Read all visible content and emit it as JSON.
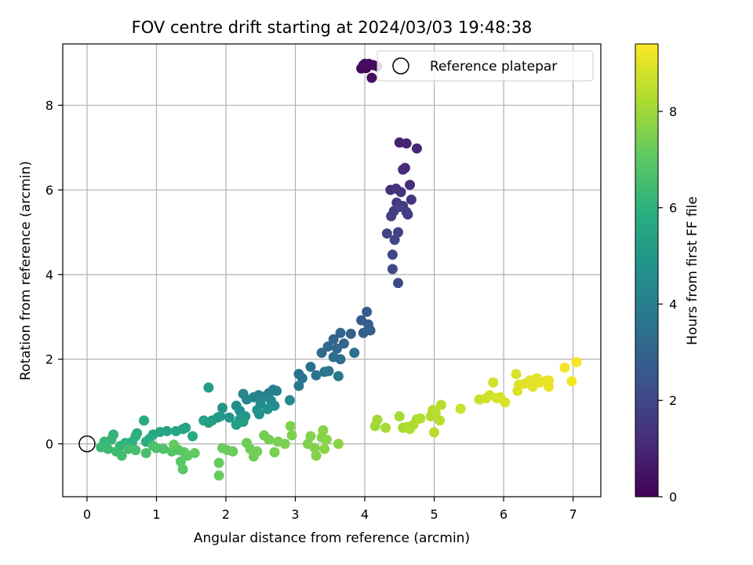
{
  "chart_data": {
    "type": "scatter",
    "title": "FOV centre drift starting at 2024/03/03 19:48:38",
    "xlabel": "Angular distance from reference (arcmin)",
    "ylabel": "Rotation from reference (arcmin)",
    "xlim": [
      -0.35,
      7.4
    ],
    "ylim": [
      -1.25,
      9.45
    ],
    "xticks": [
      0,
      1,
      2,
      3,
      4,
      5,
      6,
      7
    ],
    "yticks": [
      0,
      2,
      4,
      6,
      8
    ],
    "grid": true,
    "legend": {
      "placement": "top-right",
      "entries": [
        "Reference platepar"
      ]
    },
    "reference_point": {
      "name": "Reference platepar",
      "x": 0.0,
      "y": 0.0
    },
    "colorbar": {
      "label": "Hours from first FF file",
      "colormap": "viridis",
      "range": [
        0,
        9.4
      ],
      "ticks": [
        0,
        2,
        4,
        6,
        8
      ]
    },
    "points": [
      {
        "x": 3.98,
        "y": 8.95,
        "c": 0.05
      },
      {
        "x": 4.02,
        "y": 8.88,
        "c": 0.1
      },
      {
        "x": 4.06,
        "y": 8.98,
        "c": 0.15
      },
      {
        "x": 3.95,
        "y": 8.87,
        "c": 0.2
      },
      {
        "x": 4.12,
        "y": 8.95,
        "c": 0.25
      },
      {
        "x": 4.18,
        "y": 8.92,
        "c": 0.3
      },
      {
        "x": 4.1,
        "y": 8.65,
        "c": 0.35
      },
      {
        "x": 4.0,
        "y": 8.98,
        "c": 0.4
      },
      {
        "x": 4.5,
        "y": 7.12,
        "c": 0.9
      },
      {
        "x": 4.6,
        "y": 7.1,
        "c": 0.95
      },
      {
        "x": 4.75,
        "y": 6.98,
        "c": 1.0
      },
      {
        "x": 4.58,
        "y": 6.52,
        "c": 1.1
      },
      {
        "x": 4.55,
        "y": 6.48,
        "c": 1.15
      },
      {
        "x": 4.65,
        "y": 6.12,
        "c": 1.2
      },
      {
        "x": 4.37,
        "y": 6.0,
        "c": 1.3
      },
      {
        "x": 4.45,
        "y": 6.03,
        "c": 1.35
      },
      {
        "x": 4.52,
        "y": 5.95,
        "c": 1.4
      },
      {
        "x": 4.67,
        "y": 5.77,
        "c": 1.45
      },
      {
        "x": 4.46,
        "y": 5.7,
        "c": 1.5
      },
      {
        "x": 4.55,
        "y": 5.62,
        "c": 1.55
      },
      {
        "x": 4.42,
        "y": 5.5,
        "c": 1.6
      },
      {
        "x": 4.38,
        "y": 5.38,
        "c": 1.65
      },
      {
        "x": 4.6,
        "y": 5.48,
        "c": 1.7
      },
      {
        "x": 4.62,
        "y": 5.42,
        "c": 1.75
      },
      {
        "x": 4.5,
        "y": 5.6,
        "c": 1.8
      },
      {
        "x": 4.32,
        "y": 4.97,
        "c": 1.85
      },
      {
        "x": 4.48,
        "y": 5.0,
        "c": 1.9
      },
      {
        "x": 4.43,
        "y": 4.82,
        "c": 1.95
      },
      {
        "x": 4.4,
        "y": 4.47,
        "c": 2.0
      },
      {
        "x": 4.4,
        "y": 4.13,
        "c": 2.05
      },
      {
        "x": 4.48,
        "y": 3.8,
        "c": 2.1
      },
      {
        "x": 4.03,
        "y": 3.12,
        "c": 2.7
      },
      {
        "x": 3.95,
        "y": 2.92,
        "c": 2.75
      },
      {
        "x": 4.05,
        "y": 2.82,
        "c": 2.8
      },
      {
        "x": 4.08,
        "y": 2.68,
        "c": 2.85
      },
      {
        "x": 3.98,
        "y": 2.62,
        "c": 2.9
      },
      {
        "x": 3.8,
        "y": 2.6,
        "c": 2.95
      },
      {
        "x": 3.65,
        "y": 2.62,
        "c": 3.0
      },
      {
        "x": 3.55,
        "y": 2.47,
        "c": 3.05
      },
      {
        "x": 3.7,
        "y": 2.37,
        "c": 3.1
      },
      {
        "x": 3.6,
        "y": 2.25,
        "c": 3.15
      },
      {
        "x": 3.47,
        "y": 2.3,
        "c": 3.2
      },
      {
        "x": 3.38,
        "y": 2.15,
        "c": 3.25
      },
      {
        "x": 3.55,
        "y": 2.05,
        "c": 3.3
      },
      {
        "x": 3.65,
        "y": 2.0,
        "c": 3.35
      },
      {
        "x": 3.85,
        "y": 2.15,
        "c": 3.4
      },
      {
        "x": 3.22,
        "y": 1.82,
        "c": 3.45
      },
      {
        "x": 3.05,
        "y": 1.65,
        "c": 3.5
      },
      {
        "x": 3.1,
        "y": 1.55,
        "c": 3.55
      },
      {
        "x": 3.3,
        "y": 1.62,
        "c": 3.6
      },
      {
        "x": 3.42,
        "y": 1.7,
        "c": 3.65
      },
      {
        "x": 3.48,
        "y": 1.72,
        "c": 3.7
      },
      {
        "x": 3.62,
        "y": 1.6,
        "c": 3.75
      },
      {
        "x": 3.05,
        "y": 1.37,
        "c": 3.8
      },
      {
        "x": 2.68,
        "y": 1.28,
        "c": 4.0
      },
      {
        "x": 2.73,
        "y": 1.25,
        "c": 4.05
      },
      {
        "x": 2.62,
        "y": 1.2,
        "c": 4.1
      },
      {
        "x": 2.47,
        "y": 1.15,
        "c": 4.15
      },
      {
        "x": 2.55,
        "y": 1.12,
        "c": 4.2
      },
      {
        "x": 2.4,
        "y": 1.1,
        "c": 4.25
      },
      {
        "x": 2.25,
        "y": 1.18,
        "c": 4.3
      },
      {
        "x": 2.3,
        "y": 1.05,
        "c": 4.35
      },
      {
        "x": 2.65,
        "y": 1.02,
        "c": 4.4
      },
      {
        "x": 2.92,
        "y": 1.03,
        "c": 4.45
      },
      {
        "x": 2.5,
        "y": 0.95,
        "c": 4.5
      },
      {
        "x": 2.7,
        "y": 0.9,
        "c": 4.55
      },
      {
        "x": 2.15,
        "y": 0.9,
        "c": 4.6
      },
      {
        "x": 2.2,
        "y": 0.78,
        "c": 4.65
      },
      {
        "x": 2.45,
        "y": 0.8,
        "c": 4.7
      },
      {
        "x": 2.6,
        "y": 0.82,
        "c": 4.75
      },
      {
        "x": 2.48,
        "y": 0.7,
        "c": 4.8
      },
      {
        "x": 1.95,
        "y": 0.85,
        "c": 4.85
      },
      {
        "x": 2.28,
        "y": 0.65,
        "c": 4.9
      },
      {
        "x": 2.05,
        "y": 0.62,
        "c": 4.95
      },
      {
        "x": 1.92,
        "y": 0.65,
        "c": 5.0
      },
      {
        "x": 1.88,
        "y": 0.62,
        "c": 5.05
      },
      {
        "x": 2.2,
        "y": 0.58,
        "c": 5.1
      },
      {
        "x": 1.8,
        "y": 0.55,
        "c": 5.15
      },
      {
        "x": 2.25,
        "y": 0.52,
        "c": 5.2
      },
      {
        "x": 1.75,
        "y": 0.5,
        "c": 5.25
      },
      {
        "x": 1.68,
        "y": 0.55,
        "c": 5.3
      },
      {
        "x": 1.75,
        "y": 1.33,
        "c": 5.2
      },
      {
        "x": 2.15,
        "y": 0.45,
        "c": 5.25
      },
      {
        "x": 1.42,
        "y": 0.38,
        "c": 5.4
      },
      {
        "x": 1.38,
        "y": 0.35,
        "c": 5.45
      },
      {
        "x": 1.28,
        "y": 0.3,
        "c": 5.5
      },
      {
        "x": 1.15,
        "y": 0.3,
        "c": 5.55
      },
      {
        "x": 1.05,
        "y": 0.28,
        "c": 5.6
      },
      {
        "x": 0.95,
        "y": 0.22,
        "c": 5.65
      },
      {
        "x": 0.82,
        "y": 0.55,
        "c": 5.7
      },
      {
        "x": 1.52,
        "y": 0.18,
        "c": 5.75
      },
      {
        "x": 0.9,
        "y": 0.12,
        "c": 5.8
      },
      {
        "x": 0.85,
        "y": 0.05,
        "c": 5.85
      },
      {
        "x": 0.72,
        "y": 0.25,
        "c": 5.9
      },
      {
        "x": 0.7,
        "y": 0.18,
        "c": 5.95
      },
      {
        "x": 0.65,
        "y": 0.05,
        "c": 6.0
      },
      {
        "x": 0.55,
        "y": 0.02,
        "c": 6.05
      },
      {
        "x": 0.48,
        "y": -0.05,
        "c": 6.1
      },
      {
        "x": 0.38,
        "y": 0.22,
        "c": 6.15
      },
      {
        "x": 0.35,
        "y": 0.1,
        "c": 6.2
      },
      {
        "x": 0.25,
        "y": 0.05,
        "c": 6.25
      },
      {
        "x": 0.2,
        "y": -0.08,
        "c": 6.3
      },
      {
        "x": 0.3,
        "y": -0.12,
        "c": 6.35
      },
      {
        "x": 0.42,
        "y": -0.18,
        "c": 6.4
      },
      {
        "x": 0.5,
        "y": -0.28,
        "c": 6.45
      },
      {
        "x": 0.6,
        "y": -0.12,
        "c": 6.5
      },
      {
        "x": 0.7,
        "y": -0.15,
        "c": 6.55
      },
      {
        "x": 0.85,
        "y": -0.22,
        "c": 6.6
      },
      {
        "x": 0.95,
        "y": -0.05,
        "c": 6.65
      },
      {
        "x": 1.0,
        "y": -0.1,
        "c": 6.7
      },
      {
        "x": 1.1,
        "y": -0.12,
        "c": 6.75
      },
      {
        "x": 1.22,
        "y": -0.18,
        "c": 6.8
      },
      {
        "x": 1.32,
        "y": -0.15,
        "c": 6.85
      },
      {
        "x": 1.35,
        "y": -0.42,
        "c": 6.9
      },
      {
        "x": 1.38,
        "y": -0.6,
        "c": 6.95
      },
      {
        "x": 1.4,
        "y": -0.2,
        "c": 7.0
      },
      {
        "x": 1.45,
        "y": -0.28,
        "c": 7.05
      },
      {
        "x": 1.55,
        "y": -0.22,
        "c": 7.1
      },
      {
        "x": 1.25,
        "y": -0.02,
        "c": 7.12
      },
      {
        "x": 1.9,
        "y": -0.45,
        "c": 7.15
      },
      {
        "x": 1.9,
        "y": -0.75,
        "c": 7.18
      },
      {
        "x": 1.95,
        "y": -0.1,
        "c": 7.2
      },
      {
        "x": 2.02,
        "y": -0.15,
        "c": 7.22
      },
      {
        "x": 2.1,
        "y": -0.18,
        "c": 7.25
      },
      {
        "x": 2.3,
        "y": 0.02,
        "c": 7.28
      },
      {
        "x": 2.35,
        "y": -0.12,
        "c": 7.3
      },
      {
        "x": 2.4,
        "y": -0.3,
        "c": 7.32
      },
      {
        "x": 2.45,
        "y": -0.18,
        "c": 7.35
      },
      {
        "x": 2.55,
        "y": 0.2,
        "c": 7.38
      },
      {
        "x": 2.62,
        "y": 0.1,
        "c": 7.4
      },
      {
        "x": 2.7,
        "y": -0.2,
        "c": 7.42
      },
      {
        "x": 2.75,
        "y": 0.05,
        "c": 7.45
      },
      {
        "x": 2.85,
        "y": 0.0,
        "c": 7.48
      },
      {
        "x": 2.95,
        "y": 0.2,
        "c": 7.5
      },
      {
        "x": 2.93,
        "y": 0.42,
        "c": 7.52
      },
      {
        "x": 3.18,
        "y": 0.0,
        "c": 7.55
      },
      {
        "x": 3.22,
        "y": 0.18,
        "c": 7.58
      },
      {
        "x": 3.28,
        "y": -0.1,
        "c": 7.6
      },
      {
        "x": 3.3,
        "y": -0.28,
        "c": 7.62
      },
      {
        "x": 3.38,
        "y": 0.15,
        "c": 7.65
      },
      {
        "x": 3.4,
        "y": 0.32,
        "c": 7.68
      },
      {
        "x": 3.45,
        "y": 0.1,
        "c": 7.7
      },
      {
        "x": 3.42,
        "y": -0.12,
        "c": 7.72
      },
      {
        "x": 3.62,
        "y": 0.0,
        "c": 7.75
      },
      {
        "x": 4.15,
        "y": 0.42,
        "c": 8.05
      },
      {
        "x": 4.18,
        "y": 0.57,
        "c": 8.08
      },
      {
        "x": 4.3,
        "y": 0.38,
        "c": 8.1
      },
      {
        "x": 4.5,
        "y": 0.65,
        "c": 8.12
      },
      {
        "x": 4.55,
        "y": 0.38,
        "c": 8.15
      },
      {
        "x": 4.62,
        "y": 0.4,
        "c": 8.18
      },
      {
        "x": 4.7,
        "y": 0.45,
        "c": 8.2
      },
      {
        "x": 4.75,
        "y": 0.58,
        "c": 8.22
      },
      {
        "x": 4.65,
        "y": 0.35,
        "c": 8.25
      },
      {
        "x": 4.8,
        "y": 0.6,
        "c": 8.28
      },
      {
        "x": 4.95,
        "y": 0.65,
        "c": 8.3
      },
      {
        "x": 4.98,
        "y": 0.8,
        "c": 8.32
      },
      {
        "x": 5.02,
        "y": 0.72,
        "c": 8.35
      },
      {
        "x": 5.0,
        "y": 0.27,
        "c": 8.38
      },
      {
        "x": 5.08,
        "y": 0.55,
        "c": 8.4
      },
      {
        "x": 5.1,
        "y": 0.92,
        "c": 8.42
      },
      {
        "x": 5.38,
        "y": 0.83,
        "c": 8.6
      },
      {
        "x": 5.65,
        "y": 1.05,
        "c": 8.7
      },
      {
        "x": 5.75,
        "y": 1.08,
        "c": 8.72
      },
      {
        "x": 5.8,
        "y": 1.15,
        "c": 8.75
      },
      {
        "x": 5.85,
        "y": 1.45,
        "c": 8.78
      },
      {
        "x": 5.9,
        "y": 1.08,
        "c": 8.8
      },
      {
        "x": 5.95,
        "y": 1.1,
        "c": 8.82
      },
      {
        "x": 6.02,
        "y": 0.98,
        "c": 8.85
      },
      {
        "x": 6.18,
        "y": 1.65,
        "c": 8.88
      },
      {
        "x": 6.2,
        "y": 1.25,
        "c": 8.9
      },
      {
        "x": 6.22,
        "y": 1.4,
        "c": 8.92
      },
      {
        "x": 6.3,
        "y": 1.42,
        "c": 8.95
      },
      {
        "x": 6.38,
        "y": 1.5,
        "c": 8.98
      },
      {
        "x": 6.42,
        "y": 1.35,
        "c": 9.0
      },
      {
        "x": 6.48,
        "y": 1.55,
        "c": 9.02
      },
      {
        "x": 6.52,
        "y": 1.45,
        "c": 9.05
      },
      {
        "x": 6.6,
        "y": 1.48,
        "c": 9.08
      },
      {
        "x": 6.65,
        "y": 1.35,
        "c": 9.1
      },
      {
        "x": 6.65,
        "y": 1.5,
        "c": 9.12
      },
      {
        "x": 6.88,
        "y": 1.8,
        "c": 9.2
      },
      {
        "x": 6.98,
        "y": 1.48,
        "c": 9.25
      },
      {
        "x": 7.05,
        "y": 1.93,
        "c": 9.3
      }
    ]
  }
}
